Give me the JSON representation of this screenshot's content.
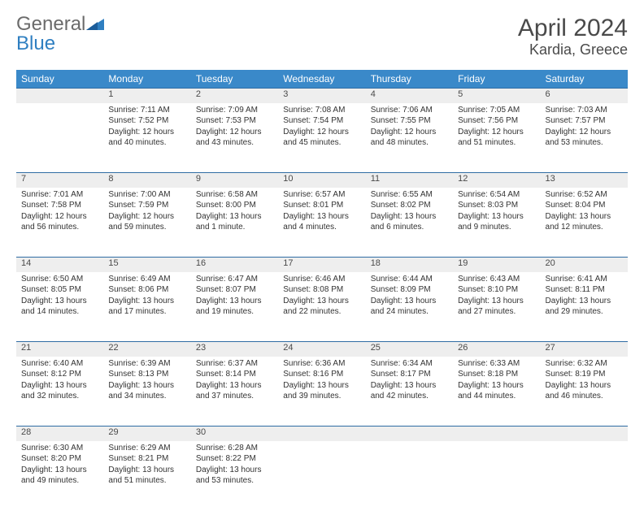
{
  "logo": {
    "word1": "General",
    "word2": "Blue"
  },
  "title": "April 2024",
  "location": "Kardia, Greece",
  "colors": {
    "header_bg": "#3a89c9",
    "header_text": "#ffffff",
    "daynum_bg": "#eeeeee",
    "rule": "#2f6ca3",
    "logo_gray": "#6b6b6b",
    "logo_blue": "#2f7fc1",
    "body_text": "#333333"
  },
  "weekdays": [
    "Sunday",
    "Monday",
    "Tuesday",
    "Wednesday",
    "Thursday",
    "Friday",
    "Saturday"
  ],
  "weeks": [
    [
      null,
      {
        "n": "1",
        "sr": "Sunrise: 7:11 AM",
        "ss": "Sunset: 7:52 PM",
        "d1": "Daylight: 12 hours",
        "d2": "and 40 minutes."
      },
      {
        "n": "2",
        "sr": "Sunrise: 7:09 AM",
        "ss": "Sunset: 7:53 PM",
        "d1": "Daylight: 12 hours",
        "d2": "and 43 minutes."
      },
      {
        "n": "3",
        "sr": "Sunrise: 7:08 AM",
        "ss": "Sunset: 7:54 PM",
        "d1": "Daylight: 12 hours",
        "d2": "and 45 minutes."
      },
      {
        "n": "4",
        "sr": "Sunrise: 7:06 AM",
        "ss": "Sunset: 7:55 PM",
        "d1": "Daylight: 12 hours",
        "d2": "and 48 minutes."
      },
      {
        "n": "5",
        "sr": "Sunrise: 7:05 AM",
        "ss": "Sunset: 7:56 PM",
        "d1": "Daylight: 12 hours",
        "d2": "and 51 minutes."
      },
      {
        "n": "6",
        "sr": "Sunrise: 7:03 AM",
        "ss": "Sunset: 7:57 PM",
        "d1": "Daylight: 12 hours",
        "d2": "and 53 minutes."
      }
    ],
    [
      {
        "n": "7",
        "sr": "Sunrise: 7:01 AM",
        "ss": "Sunset: 7:58 PM",
        "d1": "Daylight: 12 hours",
        "d2": "and 56 minutes."
      },
      {
        "n": "8",
        "sr": "Sunrise: 7:00 AM",
        "ss": "Sunset: 7:59 PM",
        "d1": "Daylight: 12 hours",
        "d2": "and 59 minutes."
      },
      {
        "n": "9",
        "sr": "Sunrise: 6:58 AM",
        "ss": "Sunset: 8:00 PM",
        "d1": "Daylight: 13 hours",
        "d2": "and 1 minute."
      },
      {
        "n": "10",
        "sr": "Sunrise: 6:57 AM",
        "ss": "Sunset: 8:01 PM",
        "d1": "Daylight: 13 hours",
        "d2": "and 4 minutes."
      },
      {
        "n": "11",
        "sr": "Sunrise: 6:55 AM",
        "ss": "Sunset: 8:02 PM",
        "d1": "Daylight: 13 hours",
        "d2": "and 6 minutes."
      },
      {
        "n": "12",
        "sr": "Sunrise: 6:54 AM",
        "ss": "Sunset: 8:03 PM",
        "d1": "Daylight: 13 hours",
        "d2": "and 9 minutes."
      },
      {
        "n": "13",
        "sr": "Sunrise: 6:52 AM",
        "ss": "Sunset: 8:04 PM",
        "d1": "Daylight: 13 hours",
        "d2": "and 12 minutes."
      }
    ],
    [
      {
        "n": "14",
        "sr": "Sunrise: 6:50 AM",
        "ss": "Sunset: 8:05 PM",
        "d1": "Daylight: 13 hours",
        "d2": "and 14 minutes."
      },
      {
        "n": "15",
        "sr": "Sunrise: 6:49 AM",
        "ss": "Sunset: 8:06 PM",
        "d1": "Daylight: 13 hours",
        "d2": "and 17 minutes."
      },
      {
        "n": "16",
        "sr": "Sunrise: 6:47 AM",
        "ss": "Sunset: 8:07 PM",
        "d1": "Daylight: 13 hours",
        "d2": "and 19 minutes."
      },
      {
        "n": "17",
        "sr": "Sunrise: 6:46 AM",
        "ss": "Sunset: 8:08 PM",
        "d1": "Daylight: 13 hours",
        "d2": "and 22 minutes."
      },
      {
        "n": "18",
        "sr": "Sunrise: 6:44 AM",
        "ss": "Sunset: 8:09 PM",
        "d1": "Daylight: 13 hours",
        "d2": "and 24 minutes."
      },
      {
        "n": "19",
        "sr": "Sunrise: 6:43 AM",
        "ss": "Sunset: 8:10 PM",
        "d1": "Daylight: 13 hours",
        "d2": "and 27 minutes."
      },
      {
        "n": "20",
        "sr": "Sunrise: 6:41 AM",
        "ss": "Sunset: 8:11 PM",
        "d1": "Daylight: 13 hours",
        "d2": "and 29 minutes."
      }
    ],
    [
      {
        "n": "21",
        "sr": "Sunrise: 6:40 AM",
        "ss": "Sunset: 8:12 PM",
        "d1": "Daylight: 13 hours",
        "d2": "and 32 minutes."
      },
      {
        "n": "22",
        "sr": "Sunrise: 6:39 AM",
        "ss": "Sunset: 8:13 PM",
        "d1": "Daylight: 13 hours",
        "d2": "and 34 minutes."
      },
      {
        "n": "23",
        "sr": "Sunrise: 6:37 AM",
        "ss": "Sunset: 8:14 PM",
        "d1": "Daylight: 13 hours",
        "d2": "and 37 minutes."
      },
      {
        "n": "24",
        "sr": "Sunrise: 6:36 AM",
        "ss": "Sunset: 8:16 PM",
        "d1": "Daylight: 13 hours",
        "d2": "and 39 minutes."
      },
      {
        "n": "25",
        "sr": "Sunrise: 6:34 AM",
        "ss": "Sunset: 8:17 PM",
        "d1": "Daylight: 13 hours",
        "d2": "and 42 minutes."
      },
      {
        "n": "26",
        "sr": "Sunrise: 6:33 AM",
        "ss": "Sunset: 8:18 PM",
        "d1": "Daylight: 13 hours",
        "d2": "and 44 minutes."
      },
      {
        "n": "27",
        "sr": "Sunrise: 6:32 AM",
        "ss": "Sunset: 8:19 PM",
        "d1": "Daylight: 13 hours",
        "d2": "and 46 minutes."
      }
    ],
    [
      {
        "n": "28",
        "sr": "Sunrise: 6:30 AM",
        "ss": "Sunset: 8:20 PM",
        "d1": "Daylight: 13 hours",
        "d2": "and 49 minutes."
      },
      {
        "n": "29",
        "sr": "Sunrise: 6:29 AM",
        "ss": "Sunset: 8:21 PM",
        "d1": "Daylight: 13 hours",
        "d2": "and 51 minutes."
      },
      {
        "n": "30",
        "sr": "Sunrise: 6:28 AM",
        "ss": "Sunset: 8:22 PM",
        "d1": "Daylight: 13 hours",
        "d2": "and 53 minutes."
      },
      null,
      null,
      null,
      null
    ]
  ]
}
